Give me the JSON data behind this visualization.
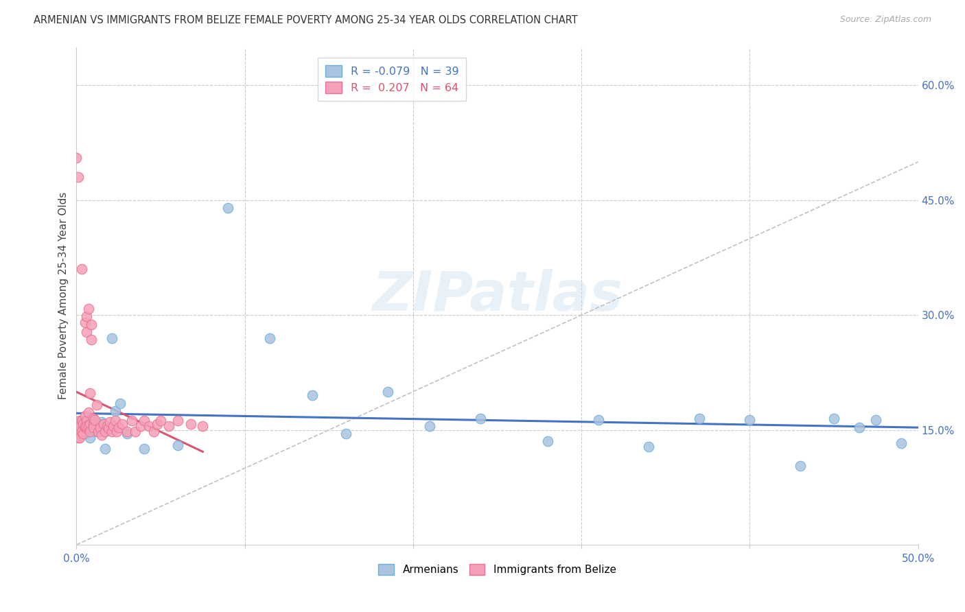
{
  "title": "ARMENIAN VS IMMIGRANTS FROM BELIZE FEMALE POVERTY AMONG 25-34 YEAR OLDS CORRELATION CHART",
  "source": "Source: ZipAtlas.com",
  "ylabel": "Female Poverty Among 25-34 Year Olds",
  "xlim": [
    0.0,
    0.5
  ],
  "ylim": [
    0.0,
    0.65
  ],
  "armenian_color": "#aac4e0",
  "belize_color": "#f5a0b8",
  "armenian_edge": "#6aaed6",
  "belize_edge": "#e87090",
  "trend_armenian_color": "#4472c4",
  "trend_belize_color": "#d9546e",
  "diag_color": "#bbbbbb",
  "R_armenian": -0.079,
  "N_armenian": 39,
  "R_belize": 0.207,
  "N_belize": 64,
  "arm_x": [
    0.001,
    0.002,
    0.003,
    0.004,
    0.005,
    0.006,
    0.007,
    0.008,
    0.009,
    0.01,
    0.011,
    0.012,
    0.013,
    0.015,
    0.017,
    0.019,
    0.021,
    0.023,
    0.026,
    0.03,
    0.04,
    0.06,
    0.09,
    0.115,
    0.14,
    0.16,
    0.185,
    0.21,
    0.24,
    0.28,
    0.31,
    0.34,
    0.37,
    0.4,
    0.43,
    0.45,
    0.465,
    0.475,
    0.49
  ],
  "arm_y": [
    0.155,
    0.148,
    0.152,
    0.158,
    0.145,
    0.162,
    0.15,
    0.14,
    0.165,
    0.155,
    0.148,
    0.152,
    0.158,
    0.16,
    0.125,
    0.15,
    0.27,
    0.175,
    0.185,
    0.145,
    0.125,
    0.13,
    0.44,
    0.27,
    0.195,
    0.145,
    0.2,
    0.155,
    0.165,
    0.135,
    0.163,
    0.128,
    0.165,
    0.163,
    0.103,
    0.165,
    0.153,
    0.163,
    0.133
  ],
  "bel_x": [
    0.0,
    0.0,
    0.0,
    0.001,
    0.001,
    0.001,
    0.001,
    0.002,
    0.002,
    0.002,
    0.002,
    0.003,
    0.003,
    0.003,
    0.004,
    0.004,
    0.005,
    0.005,
    0.005,
    0.005,
    0.006,
    0.006,
    0.006,
    0.006,
    0.007,
    0.007,
    0.007,
    0.008,
    0.008,
    0.008,
    0.009,
    0.009,
    0.01,
    0.01,
    0.01,
    0.011,
    0.012,
    0.013,
    0.014,
    0.015,
    0.016,
    0.017,
    0.018,
    0.019,
    0.02,
    0.021,
    0.022,
    0.023,
    0.024,
    0.025,
    0.027,
    0.03,
    0.033,
    0.035,
    0.038,
    0.04,
    0.043,
    0.046,
    0.048,
    0.05,
    0.055,
    0.06,
    0.068,
    0.075
  ],
  "bel_y": [
    0.148,
    0.505,
    0.145,
    0.158,
    0.14,
    0.48,
    0.148,
    0.162,
    0.148,
    0.14,
    0.155,
    0.162,
    0.36,
    0.148,
    0.158,
    0.145,
    0.168,
    0.153,
    0.29,
    0.155,
    0.298,
    0.278,
    0.162,
    0.155,
    0.308,
    0.173,
    0.155,
    0.198,
    0.158,
    0.148,
    0.288,
    0.268,
    0.165,
    0.158,
    0.153,
    0.163,
    0.183,
    0.148,
    0.153,
    0.143,
    0.158,
    0.148,
    0.155,
    0.152,
    0.16,
    0.148,
    0.155,
    0.162,
    0.148,
    0.153,
    0.158,
    0.148,
    0.162,
    0.148,
    0.155,
    0.162,
    0.155,
    0.148,
    0.158,
    0.162,
    0.155,
    0.162,
    0.158,
    0.155
  ]
}
